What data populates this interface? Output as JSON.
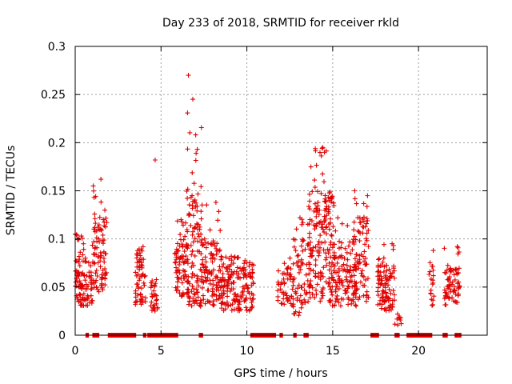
{
  "chart_data": {
    "type": "scatter",
    "title": "Day 233 of 2018, SRMTID for receiver rkld",
    "xlabel": "GPS time / hours",
    "ylabel": "SRMTID / TECUs",
    "xlim": [
      0,
      24
    ],
    "ylim": [
      0,
      0.3
    ],
    "x_ticks": [
      "0",
      "5",
      "10",
      "15",
      "20"
    ],
    "x_tick_values": [
      0,
      5,
      10,
      15,
      20
    ],
    "y_ticks": [
      "0",
      "0.05",
      "0.1",
      "0.15",
      "0.2",
      "0.25",
      "0.3"
    ],
    "y_tick_values": [
      0,
      0.05,
      0.1,
      0.15,
      0.2,
      0.25,
      0.3
    ],
    "grid": true,
    "marker": "+",
    "color": "#e00000",
    "clusters": [
      {
        "x": [
          0.0,
          0.55
        ],
        "y_low": 0.03,
        "y_high": 0.09,
        "peak": 0.105,
        "n": 70
      },
      {
        "x": [
          0.55,
          1.0
        ],
        "y_low": 0.03,
        "y_high": 0.07,
        "peak": 0.08,
        "n": 35
      },
      {
        "x": [
          1.0,
          1.85
        ],
        "y_low": 0.045,
        "y_high": 0.125,
        "peak": 0.162,
        "n": 90
      },
      {
        "x": [
          3.5,
          4.1
        ],
        "y_low": 0.03,
        "y_high": 0.085,
        "peak": 0.092,
        "n": 60
      },
      {
        "x": [
          4.4,
          4.8
        ],
        "y_low": 0.025,
        "y_high": 0.06,
        "peak": 0.182,
        "n": 30
      },
      {
        "x": [
          5.8,
          6.6
        ],
        "y_low": 0.04,
        "y_high": 0.1,
        "peak": 0.12,
        "n": 80
      },
      {
        "x": [
          6.5,
          7.4
        ],
        "y_low": 0.03,
        "y_high": 0.15,
        "peak": 0.27,
        "n": 110
      },
      {
        "x": [
          7.3,
          8.5
        ],
        "y_low": 0.03,
        "y_high": 0.1,
        "peak": 0.138,
        "n": 110
      },
      {
        "x": [
          8.5,
          10.4
        ],
        "y_low": 0.025,
        "y_high": 0.075,
        "peak": 0.082,
        "n": 170
      },
      {
        "x": [
          11.8,
          12.7
        ],
        "y_low": 0.03,
        "y_high": 0.07,
        "peak": 0.08,
        "n": 50
      },
      {
        "x": [
          12.7,
          13.7
        ],
        "y_low": 0.02,
        "y_high": 0.1,
        "peak": 0.122,
        "n": 70
      },
      {
        "x": [
          13.6,
          15.1
        ],
        "y_low": 0.035,
        "y_high": 0.15,
        "peak": 0.195,
        "n": 170
      },
      {
        "x": [
          14.8,
          16.4
        ],
        "y_low": 0.03,
        "y_high": 0.1,
        "peak": 0.122,
        "n": 130
      },
      {
        "x": [
          16.2,
          17.1
        ],
        "y_low": 0.035,
        "y_high": 0.125,
        "peak": 0.15,
        "n": 80
      },
      {
        "x": [
          17.6,
          18.6
        ],
        "y_low": 0.025,
        "y_high": 0.075,
        "peak": 0.095,
        "n": 100
      },
      {
        "x": [
          18.6,
          19.0
        ],
        "y_low": 0.01,
        "y_high": 0.022,
        "peak": 0.022,
        "n": 10
      },
      {
        "x": [
          20.6,
          20.9
        ],
        "y_low": 0.03,
        "y_high": 0.07,
        "peak": 0.088,
        "n": 20
      },
      {
        "x": [
          21.5,
          22.4
        ],
        "y_low": 0.03,
        "y_high": 0.07,
        "peak": 0.092,
        "n": 70
      }
    ],
    "zero_segments": [
      [
        0.6,
        0.8
      ],
      [
        1.0,
        1.4
      ],
      [
        1.9,
        3.55
      ],
      [
        3.95,
        4.15
      ],
      [
        4.2,
        6.0
      ],
      [
        7.2,
        7.45
      ],
      [
        10.2,
        11.7
      ],
      [
        11.9,
        12.1
      ],
      [
        12.7,
        12.9
      ],
      [
        13.3,
        13.6
      ],
      [
        17.2,
        17.7
      ],
      [
        18.6,
        18.9
      ],
      [
        19.3,
        20.8
      ],
      [
        21.4,
        21.7
      ],
      [
        22.1,
        22.5
      ]
    ]
  }
}
